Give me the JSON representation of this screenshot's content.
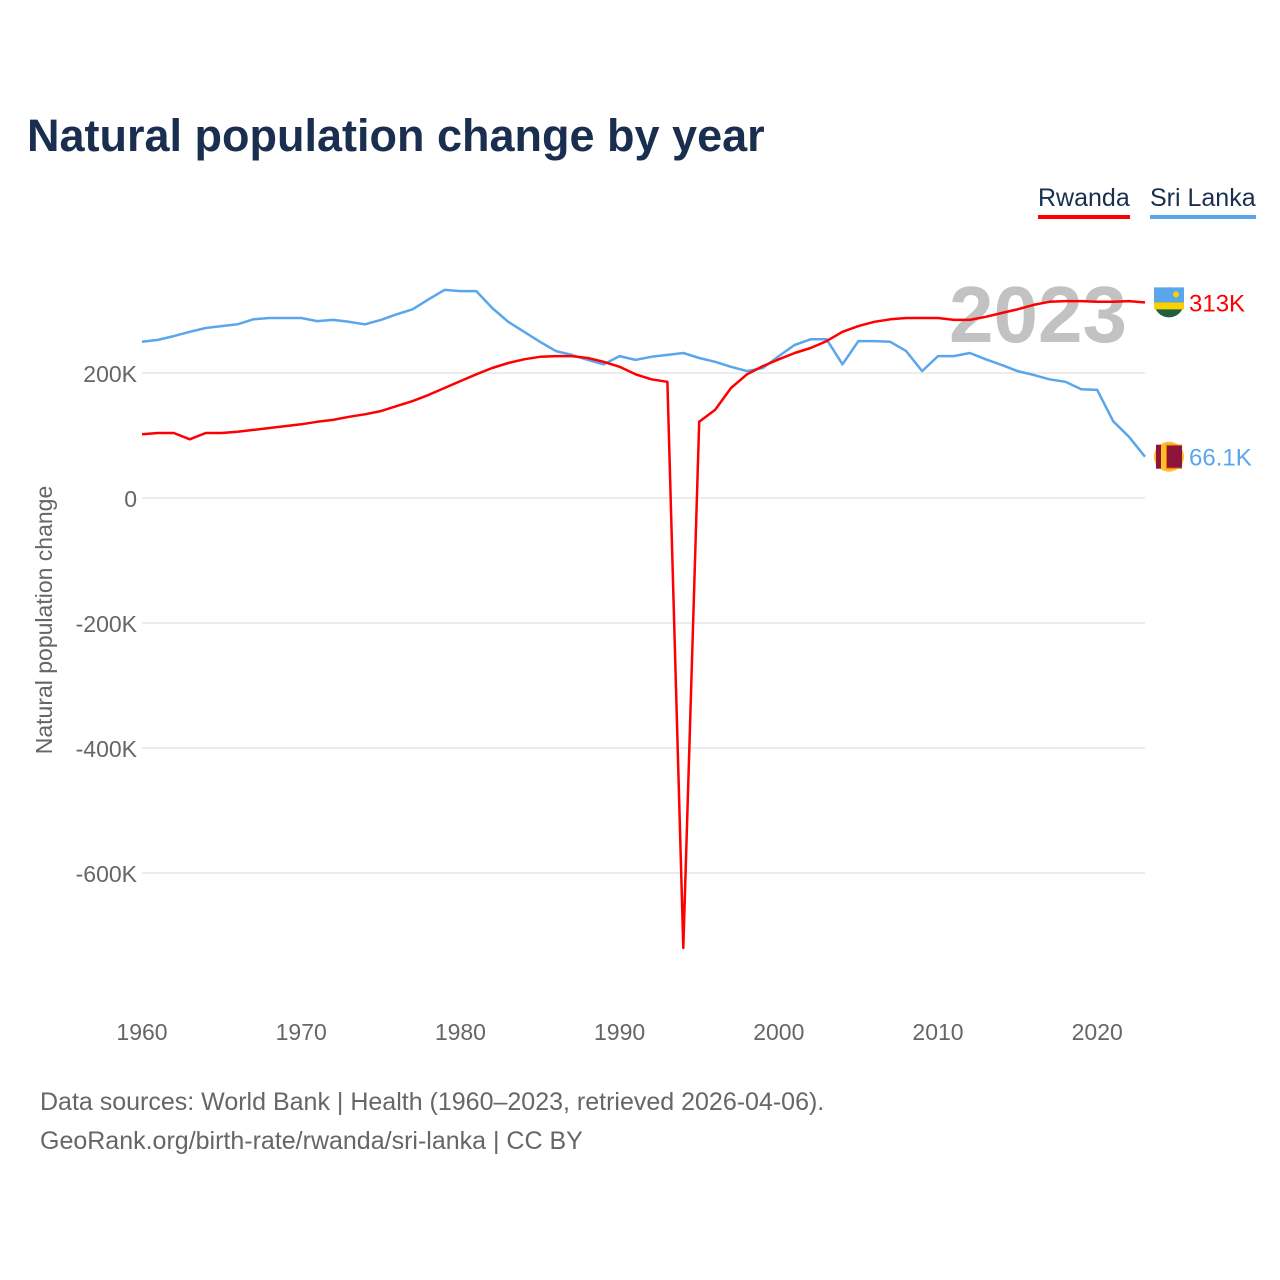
{
  "title": "Natural population change by year",
  "legend": [
    {
      "name": "Rwanda",
      "color": "#ff0000"
    },
    {
      "name": "Sri Lanka",
      "color": "#5aa6ec"
    }
  ],
  "year_watermark": "2023",
  "sources": {
    "line1": "Data sources: World Bank | Health (1960–2023, retrieved 2026-04-06).",
    "line2": "GeoRank.org/birth-rate/rwanda/sri-lanka | CC BY"
  },
  "chart_data": {
    "type": "line",
    "title": "Natural population change by year",
    "xlabel": "",
    "ylabel": "Natural population change",
    "xlim": [
      1960,
      2023
    ],
    "ylim": [
      -750,
      350
    ],
    "x_ticks": [
      1960,
      1970,
      1980,
      1990,
      2000,
      2010,
      2020
    ],
    "y_ticks": [
      {
        "v": 200,
        "label": "200K"
      },
      {
        "v": 0,
        "label": "0"
      },
      {
        "v": -200,
        "label": "-200K"
      },
      {
        "v": -400,
        "label": "-400K"
      },
      {
        "v": -600,
        "label": "-600K"
      }
    ],
    "units": "thousands",
    "grid": true,
    "legend_position": "top-right",
    "x_start": 1960,
    "series": [
      {
        "name": "Rwanda",
        "color": "#ff0000",
        "end_label": "313K",
        "values": [
          102,
          104,
          104,
          94,
          104,
          104,
          106,
          109,
          112,
          115,
          118,
          122,
          125,
          130,
          134,
          139,
          147,
          155,
          165,
          176,
          187,
          198,
          208,
          216,
          222,
          226,
          227,
          227,
          224,
          218,
          210,
          198,
          190,
          186,
          -720,
          122,
          141,
          176,
          198,
          211,
          222,
          232,
          240,
          251,
          266,
          275,
          282,
          286,
          288,
          288,
          288,
          285,
          285,
          290,
          296,
          302,
          309,
          314,
          315,
          315,
          314,
          314,
          315,
          313
        ]
      },
      {
        "name": "Sri Lanka",
        "color": "#5aa6ec",
        "end_label": "66.1K",
        "values": [
          250,
          253,
          259,
          266,
          272,
          275,
          278,
          286,
          288,
          288,
          288,
          283,
          285,
          282,
          278,
          285,
          294,
          302,
          318,
          333,
          331,
          331,
          304,
          282,
          266,
          250,
          235,
          229,
          221,
          214,
          227,
          221,
          226,
          229,
          232,
          224,
          218,
          210,
          203,
          208,
          227,
          245,
          254,
          254,
          214,
          251,
          251,
          250,
          235,
          203,
          227,
          227,
          232,
          222,
          213,
          203,
          197,
          190,
          186,
          174,
          173,
          123,
          98,
          66.1
        ]
      }
    ]
  }
}
